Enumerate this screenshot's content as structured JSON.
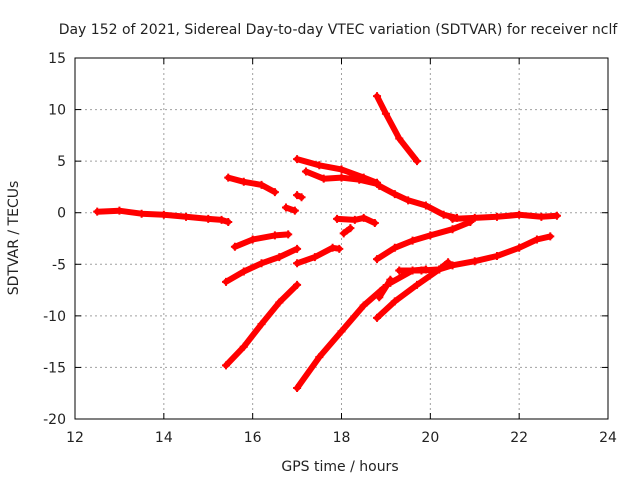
{
  "chart_data": {
    "type": "scatter",
    "title": "Day 152 of 2021, Sidereal Day-to-day VTEC variation (SDTVAR) for receiver nclf",
    "xlabel": "GPS time / hours",
    "ylabel": "SDTVAR / TECUs",
    "xlim": [
      12,
      24
    ],
    "ylim": [
      -20,
      15
    ],
    "xticks": [
      12,
      14,
      16,
      18,
      20,
      22,
      24
    ],
    "yticks": [
      -20,
      -15,
      -10,
      -5,
      0,
      5,
      10,
      15
    ],
    "grid": true,
    "series_color": "#ff0000",
    "series": [
      {
        "points": [
          [
            12.5,
            0.1
          ],
          [
            13.0,
            0.2
          ],
          [
            13.5,
            -0.1
          ],
          [
            14.0,
            -0.2
          ],
          [
            14.5,
            -0.4
          ],
          [
            15.0,
            -0.6
          ],
          [
            15.3,
            -0.7
          ],
          [
            15.45,
            -0.9
          ]
        ]
      },
      {
        "points": [
          [
            15.45,
            3.4
          ],
          [
            15.8,
            3.0
          ],
          [
            16.2,
            2.7
          ],
          [
            16.5,
            2.0
          ]
        ]
      },
      {
        "points": [
          [
            16.75,
            0.5
          ],
          [
            16.95,
            0.2
          ]
        ]
      },
      {
        "points": [
          [
            17.0,
            1.7
          ],
          [
            17.1,
            1.5
          ]
        ]
      },
      {
        "points": [
          [
            15.6,
            -3.3
          ],
          [
            16.0,
            -2.6
          ],
          [
            16.5,
            -2.2
          ],
          [
            16.8,
            -2.1
          ]
        ]
      },
      {
        "points": [
          [
            15.4,
            -6.7
          ],
          [
            15.8,
            -5.7
          ],
          [
            16.2,
            -4.9
          ],
          [
            16.6,
            -4.3
          ],
          [
            17.0,
            -3.5
          ]
        ]
      },
      {
        "points": [
          [
            17.0,
            -4.9
          ],
          [
            17.4,
            -4.3
          ],
          [
            17.8,
            -3.4
          ],
          [
            17.95,
            -3.5
          ]
        ]
      },
      {
        "points": [
          [
            15.4,
            -14.8
          ],
          [
            15.8,
            -13.0
          ],
          [
            16.2,
            -10.8
          ],
          [
            16.6,
            -8.7
          ],
          [
            17.0,
            -7.0
          ]
        ]
      },
      {
        "points": [
          [
            17.0,
            5.2
          ],
          [
            17.5,
            4.6
          ],
          [
            18.0,
            4.2
          ],
          [
            18.5,
            3.4
          ],
          [
            18.8,
            2.9
          ]
        ]
      },
      {
        "points": [
          [
            17.2,
            4.0
          ],
          [
            17.6,
            3.3
          ],
          [
            18.0,
            3.4
          ],
          [
            18.4,
            3.2
          ],
          [
            18.8,
            2.8
          ]
        ]
      },
      {
        "points": [
          [
            17.9,
            -0.6
          ],
          [
            18.3,
            -0.7
          ],
          [
            18.5,
            -0.5
          ],
          [
            18.75,
            -1.0
          ]
        ]
      },
      {
        "points": [
          [
            18.05,
            -2.0
          ],
          [
            18.2,
            -1.5
          ]
        ]
      },
      {
        "points": [
          [
            17.0,
            -17.0
          ],
          [
            17.5,
            -14.0
          ],
          [
            18.0,
            -11.5
          ],
          [
            18.5,
            -9.0
          ],
          [
            18.95,
            -7.3
          ]
        ]
      },
      {
        "points": [
          [
            18.8,
            11.3
          ],
          [
            19.0,
            9.6
          ],
          [
            19.3,
            7.2
          ],
          [
            19.7,
            5.0
          ]
        ]
      },
      {
        "points": [
          [
            18.85,
            2.6
          ],
          [
            19.2,
            1.8
          ],
          [
            19.5,
            1.2
          ],
          [
            19.9,
            0.7
          ],
          [
            20.3,
            -0.2
          ],
          [
            20.6,
            -0.5
          ]
        ]
      },
      {
        "points": [
          [
            18.8,
            -4.5
          ],
          [
            19.2,
            -3.4
          ],
          [
            19.6,
            -2.7
          ],
          [
            20.0,
            -2.2
          ],
          [
            20.5,
            -1.6
          ],
          [
            20.9,
            -0.9
          ]
        ]
      },
      {
        "points": [
          [
            20.5,
            -0.6
          ],
          [
            21.0,
            -0.5
          ],
          [
            21.5,
            -0.4
          ],
          [
            22.0,
            -0.2
          ],
          [
            22.5,
            -0.4
          ],
          [
            22.85,
            -0.3
          ]
        ]
      },
      {
        "points": [
          [
            19.3,
            -5.6
          ],
          [
            19.8,
            -5.6
          ],
          [
            20.2,
            -5.5
          ],
          [
            20.5,
            -5.1
          ],
          [
            21.0,
            -4.7
          ],
          [
            21.5,
            -4.2
          ],
          [
            22.0,
            -3.4
          ],
          [
            22.4,
            -2.6
          ],
          [
            22.7,
            -2.3
          ]
        ]
      },
      {
        "points": [
          [
            18.8,
            -10.2
          ],
          [
            19.2,
            -8.6
          ],
          [
            19.7,
            -7.0
          ],
          [
            20.2,
            -5.5
          ],
          [
            20.4,
            -4.8
          ]
        ]
      },
      {
        "points": [
          [
            19.1,
            -6.8
          ],
          [
            19.6,
            -5.6
          ],
          [
            19.9,
            -5.5
          ]
        ]
      },
      {
        "points": [
          [
            18.85,
            -8.2
          ],
          [
            19.1,
            -6.5
          ]
        ]
      }
    ]
  }
}
